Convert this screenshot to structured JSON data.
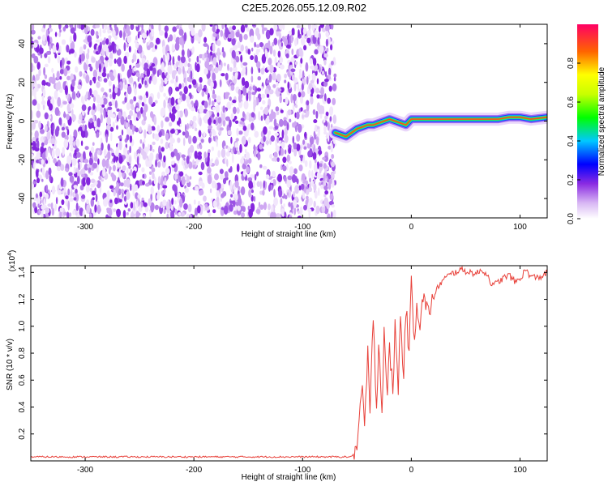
{
  "title": "C2E5.2026.055.12.09.R02",
  "chart_data": [
    {
      "type": "heatmap",
      "xlabel": "Height of straight line (km)",
      "ylabel": "Frequency (Hz)",
      "xlim": [
        -350,
        125
      ],
      "ylim": [
        -50,
        50
      ],
      "xticks": [
        -300,
        -200,
        -100,
        0,
        100
      ],
      "yticks": [
        -40,
        -20,
        0,
        20,
        40
      ],
      "noise_region_x": [
        -350,
        -70
      ],
      "signal_track": {
        "x": [
          -70,
          -65,
          -60,
          -55,
          -50,
          -45,
          -40,
          -35,
          -30,
          -25,
          -20,
          -15,
          -10,
          -5,
          0,
          10,
          20,
          40,
          60,
          80,
          90,
          100,
          110,
          125
        ],
        "y": [
          -6,
          -7,
          -8,
          -6,
          -4,
          -3,
          -2,
          -2,
          -1,
          0,
          1,
          0,
          -1,
          -2,
          1,
          1,
          1,
          1,
          1,
          1,
          2,
          2,
          1,
          2
        ]
      },
      "colorbar": {
        "label": "Normalized spectral amplitude",
        "range": [
          0,
          1
        ],
        "ticks": [
          "0.0",
          "0.2",
          "0.4",
          "0.6",
          "0.8"
        ]
      }
    },
    {
      "type": "line",
      "xlabel": "Height of straight line (km)",
      "ylabel": "SNR (10 * v/v)",
      "yscale_label": "(x10",
      "yscale_exp": "4",
      "yscale_close": ")",
      "xlim": [
        -350,
        125
      ],
      "ylim": [
        0,
        1.45
      ],
      "xticks": [
        -300,
        -200,
        -100,
        0,
        100
      ],
      "yticks": [
        "0.2",
        "0.4",
        "0.6",
        "0.8",
        "1.0",
        "1.2",
        "1.4"
      ],
      "series": [
        {
          "color": "#e8413a",
          "x": [
            -350,
            -300,
            -250,
            -200,
            -150,
            -100,
            -55,
            -50,
            -47,
            -45,
            -43,
            -40,
            -38,
            -35,
            -32,
            -30,
            -27,
            -25,
            -22,
            -20,
            -17,
            -15,
            -12,
            -10,
            -7,
            -5,
            -2,
            0,
            3,
            5,
            8,
            10,
            15,
            20,
            25,
            30,
            35,
            40,
            45,
            50,
            55,
            60,
            65,
            70,
            75,
            80,
            85,
            90,
            95,
            100,
            105,
            110,
            115,
            120,
            125
          ],
          "y": [
            0.03,
            0.03,
            0.03,
            0.03,
            0.03,
            0.03,
            0.03,
            0.1,
            0.35,
            0.55,
            0.25,
            0.8,
            0.3,
            1.1,
            0.4,
            0.9,
            0.35,
            1.0,
            0.45,
            0.85,
            0.5,
            1.0,
            0.55,
            1.05,
            0.65,
            1.15,
            0.8,
            1.3,
            0.9,
            1.2,
            1.0,
            1.25,
            1.1,
            1.2,
            1.3,
            1.35,
            1.38,
            1.4,
            1.42,
            1.41,
            1.4,
            1.39,
            1.42,
            1.38,
            1.3,
            1.33,
            1.36,
            1.38,
            1.33,
            1.35,
            1.42,
            1.37,
            1.36,
            1.37,
            1.4
          ]
        }
      ]
    }
  ]
}
